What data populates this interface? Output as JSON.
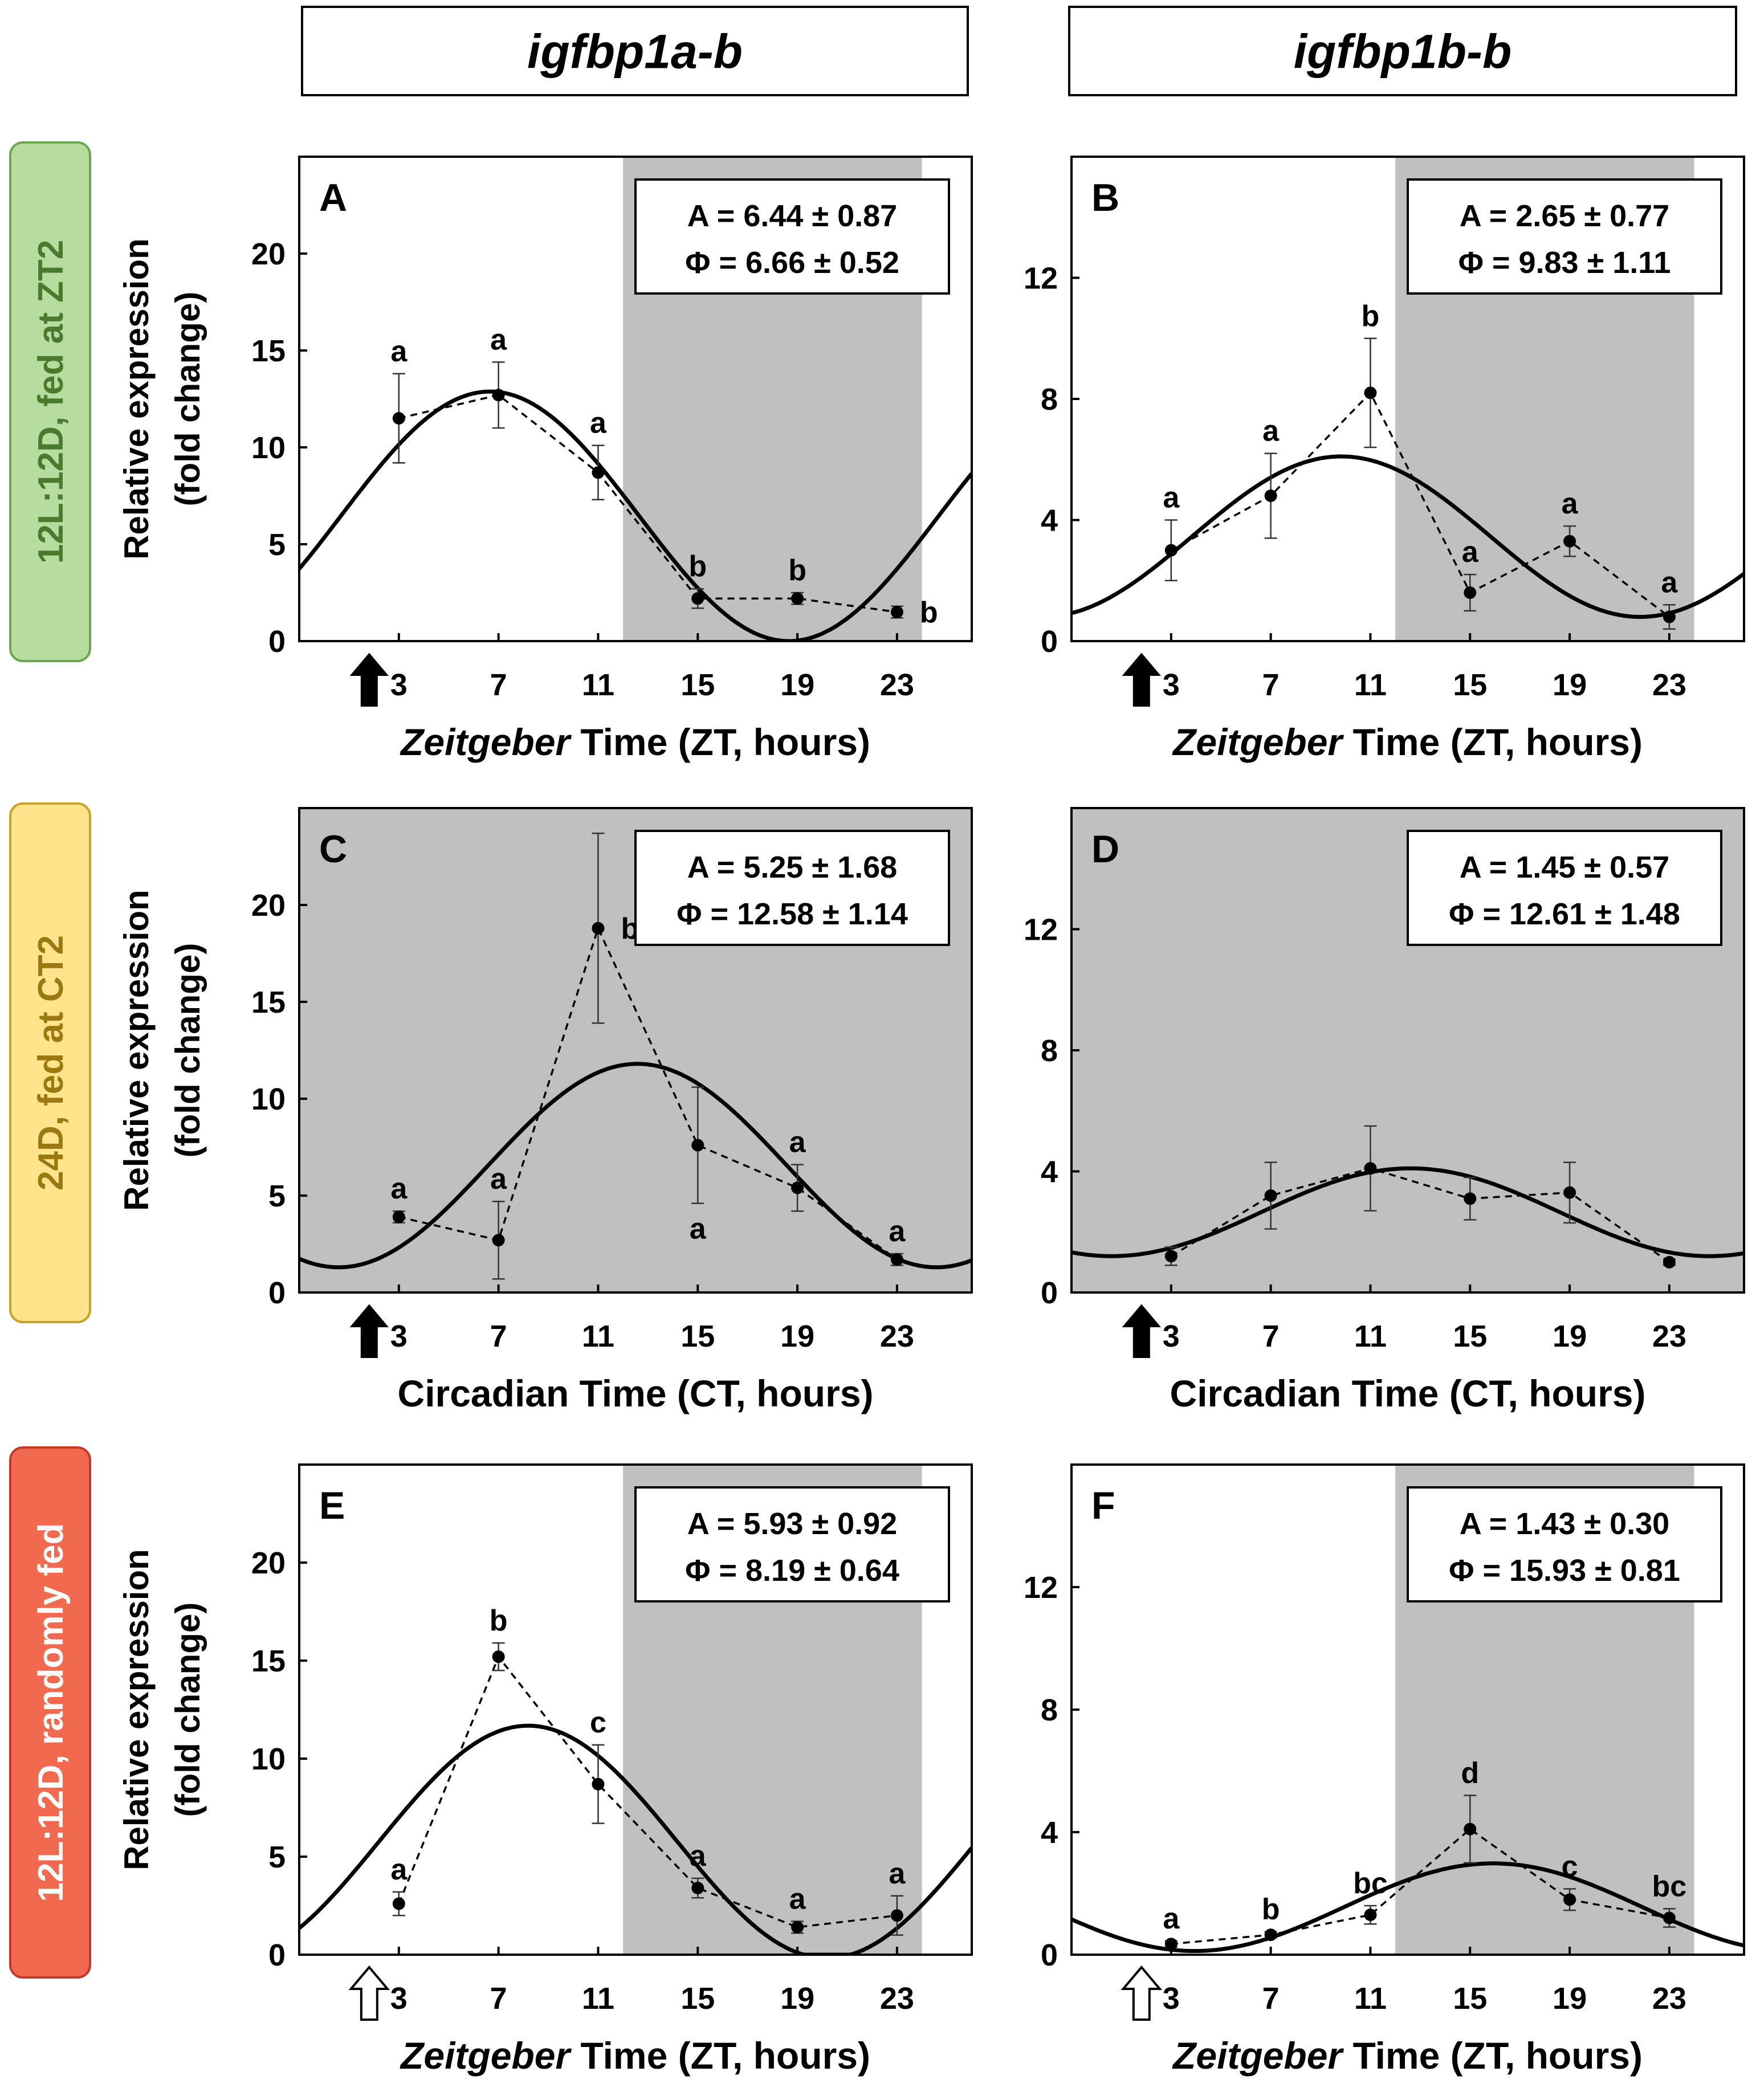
{
  "column_titles": [
    "igfbp1a-b",
    "igfbp1b-b"
  ],
  "row_labels": [
    {
      "text": "12L:12D, fed at ZT2",
      "fill": "#b6dca0",
      "stroke": "#6aa84f",
      "color": "#4a7a2c"
    },
    {
      "text": "24D, fed at CT2",
      "fill": "#ffe48c",
      "stroke": "#c9a227",
      "color": "#9a7a10"
    },
    {
      "text": "12L:12D, randomly fed",
      "fill": "#f16a4f",
      "stroke": "#c0392b",
      "color": "#ffffff"
    }
  ],
  "colors": {
    "dark_phase": "#c0c0c0",
    "line": "#000000"
  },
  "chart_data": [
    {
      "panel": "A",
      "type": "line",
      "row": 0,
      "col": 0,
      "x": [
        3,
        7,
        11,
        15,
        19,
        23
      ],
      "values": [
        11.5,
        12.7,
        8.7,
        2.2,
        2.2,
        1.5
      ],
      "errors": [
        2.3,
        1.7,
        1.4,
        0.5,
        0.3,
        0.3
      ],
      "letters": [
        "a",
        "a",
        "a",
        "b",
        "b",
        "b"
      ],
      "letter_pos": [
        "above",
        "above",
        "above",
        "above",
        "above",
        "right"
      ],
      "ylim": [
        0,
        25
      ],
      "yticks": [
        0,
        5,
        10,
        15,
        20
      ],
      "xlim": [
        -1,
        26
      ],
      "xticks": [
        3,
        7,
        11,
        15,
        19,
        23
      ],
      "dark": [
        12,
        24
      ],
      "cosinor": {
        "mesor": 6.44,
        "amp": 6.44,
        "phase": 6.66
      },
      "params": [
        "A = 6.44 ± 0.87",
        "Φ = 6.66 ± 0.52"
      ],
      "arrow": "filled",
      "ylabel": [
        "Relative expression",
        "(fold change)"
      ],
      "xlabel_italic": "Zeitgeber",
      "xlabel_rest": " Time (ZT, hours)"
    },
    {
      "panel": "B",
      "type": "line",
      "row": 0,
      "col": 1,
      "x": [
        3,
        7,
        11,
        15,
        19,
        23
      ],
      "values": [
        3.0,
        4.8,
        8.2,
        1.6,
        3.3,
        0.8
      ],
      "errors": [
        1.0,
        1.4,
        1.8,
        0.6,
        0.5,
        0.4
      ],
      "letters": [
        "a",
        "a",
        "b",
        "a",
        "a",
        "a"
      ],
      "letter_pos": [
        "above",
        "above",
        "above",
        "above",
        "above",
        "above"
      ],
      "ylim": [
        0,
        16
      ],
      "yticks": [
        0,
        4,
        8,
        12
      ],
      "xlim": [
        -1,
        26
      ],
      "xticks": [
        3,
        7,
        11,
        15,
        19,
        23
      ],
      "dark": [
        12,
        24
      ],
      "cosinor": {
        "mesor": 3.45,
        "amp": 2.65,
        "phase": 9.83
      },
      "params": [
        "A = 2.65 ± 0.77",
        "Φ = 9.83 ± 1.11"
      ],
      "arrow": "filled",
      "ylabel": null,
      "xlabel_italic": "Zeitgeber",
      "xlabel_rest": " Time (ZT, hours)"
    },
    {
      "panel": "C",
      "type": "line",
      "row": 1,
      "col": 0,
      "x": [
        3,
        7,
        11,
        15,
        19,
        23
      ],
      "values": [
        3.9,
        2.7,
        18.8,
        7.6,
        5.4,
        1.7
      ],
      "errors": [
        0.3,
        2.0,
        4.9,
        3.0,
        1.2,
        0.3
      ],
      "letters": [
        "a",
        "a",
        "b",
        "a",
        "a",
        "a"
      ],
      "letter_pos": [
        "above",
        "above",
        "right",
        "below",
        "above",
        "above"
      ],
      "ylim": [
        0,
        25
      ],
      "yticks": [
        0,
        5,
        10,
        15,
        20
      ],
      "xlim": [
        -1,
        26
      ],
      "xticks": [
        3,
        7,
        11,
        15,
        19,
        23
      ],
      "dark": [
        -1,
        26
      ],
      "cosinor": {
        "mesor": 6.55,
        "amp": 5.25,
        "phase": 12.58
      },
      "params": [
        "A = 5.25 ± 1.68",
        "Φ = 12.58 ± 1.14"
      ],
      "arrow": "filled",
      "ylabel": [
        "Relative expression",
        "(fold change)"
      ],
      "xlabel_italic": "",
      "xlabel_rest": "Circadian Time (CT, hours)"
    },
    {
      "panel": "D",
      "type": "line",
      "row": 1,
      "col": 1,
      "x": [
        3,
        7,
        11,
        15,
        19,
        23
      ],
      "values": [
        1.2,
        3.2,
        4.1,
        3.1,
        3.3,
        1.0
      ],
      "errors": [
        0.3,
        1.1,
        1.4,
        0.7,
        1.0,
        0.1
      ],
      "letters": [
        "",
        "",
        "",
        "",
        "",
        ""
      ],
      "letter_pos": [
        "above",
        "above",
        "above",
        "above",
        "above",
        "above"
      ],
      "ylim": [
        0,
        16
      ],
      "yticks": [
        0,
        4,
        8,
        12
      ],
      "xlim": [
        -1,
        26
      ],
      "xticks": [
        3,
        7,
        11,
        15,
        19,
        23
      ],
      "dark": [
        -1,
        26
      ],
      "cosinor": {
        "mesor": 2.65,
        "amp": 1.45,
        "phase": 12.61
      },
      "params": [
        "A = 1.45 ± 0.57",
        "Φ = 12.61 ± 1.48"
      ],
      "arrow": "filled",
      "ylabel": null,
      "xlabel_italic": "",
      "xlabel_rest": "Circadian Time (CT, hours)"
    },
    {
      "panel": "E",
      "type": "line",
      "row": 2,
      "col": 0,
      "x": [
        3,
        7,
        11,
        15,
        19,
        23
      ],
      "values": [
        2.6,
        15.2,
        8.7,
        3.4,
        1.4,
        2.0
      ],
      "errors": [
        0.6,
        0.7,
        2.0,
        0.5,
        0.3,
        1.0
      ],
      "letters": [
        "a",
        "b",
        "c",
        "a",
        "a",
        "a"
      ],
      "letter_pos": [
        "above",
        "above",
        "above",
        "above",
        "above",
        "above"
      ],
      "ylim": [
        0,
        25
      ],
      "yticks": [
        0,
        5,
        10,
        15,
        20
      ],
      "xlim": [
        -1,
        26
      ],
      "xticks": [
        3,
        7,
        11,
        15,
        19,
        23
      ],
      "dark": [
        12,
        24
      ],
      "cosinor": {
        "mesor": 5.75,
        "amp": 5.93,
        "phase": 8.19
      },
      "params": [
        "A = 5.93 ± 0.92",
        "Φ = 8.19 ± 0.64"
      ],
      "arrow": "hollow",
      "ylabel": [
        "Relative expression",
        "(fold change)"
      ],
      "xlabel_italic": "Zeitgeber",
      "xlabel_rest": " Time (ZT, hours)"
    },
    {
      "panel": "F",
      "type": "line",
      "row": 2,
      "col": 1,
      "x": [
        3,
        7,
        11,
        15,
        19,
        23
      ],
      "values": [
        0.35,
        0.65,
        1.3,
        4.1,
        1.8,
        1.2
      ],
      "errors": [
        0.1,
        0.1,
        0.3,
        1.1,
        0.35,
        0.3
      ],
      "letters": [
        "a",
        "b",
        "bc",
        "d",
        "c",
        "bc"
      ],
      "letter_pos": [
        "above",
        "above",
        "above",
        "above",
        "above",
        "above"
      ],
      "ylim": [
        0,
        16
      ],
      "yticks": [
        0,
        4,
        8,
        12
      ],
      "xlim": [
        -1,
        26
      ],
      "xticks": [
        3,
        7,
        11,
        15,
        19,
        23
      ],
      "dark": [
        12,
        24
      ],
      "cosinor": {
        "mesor": 1.55,
        "amp": 1.43,
        "phase": 15.93
      },
      "params": [
        "A = 1.43 ± 0.30",
        "Φ = 15.93 ± 0.81"
      ],
      "arrow": "hollow",
      "ylabel": null,
      "xlabel_italic": "Zeitgeber",
      "xlabel_rest": " Time (ZT, hours)"
    }
  ]
}
